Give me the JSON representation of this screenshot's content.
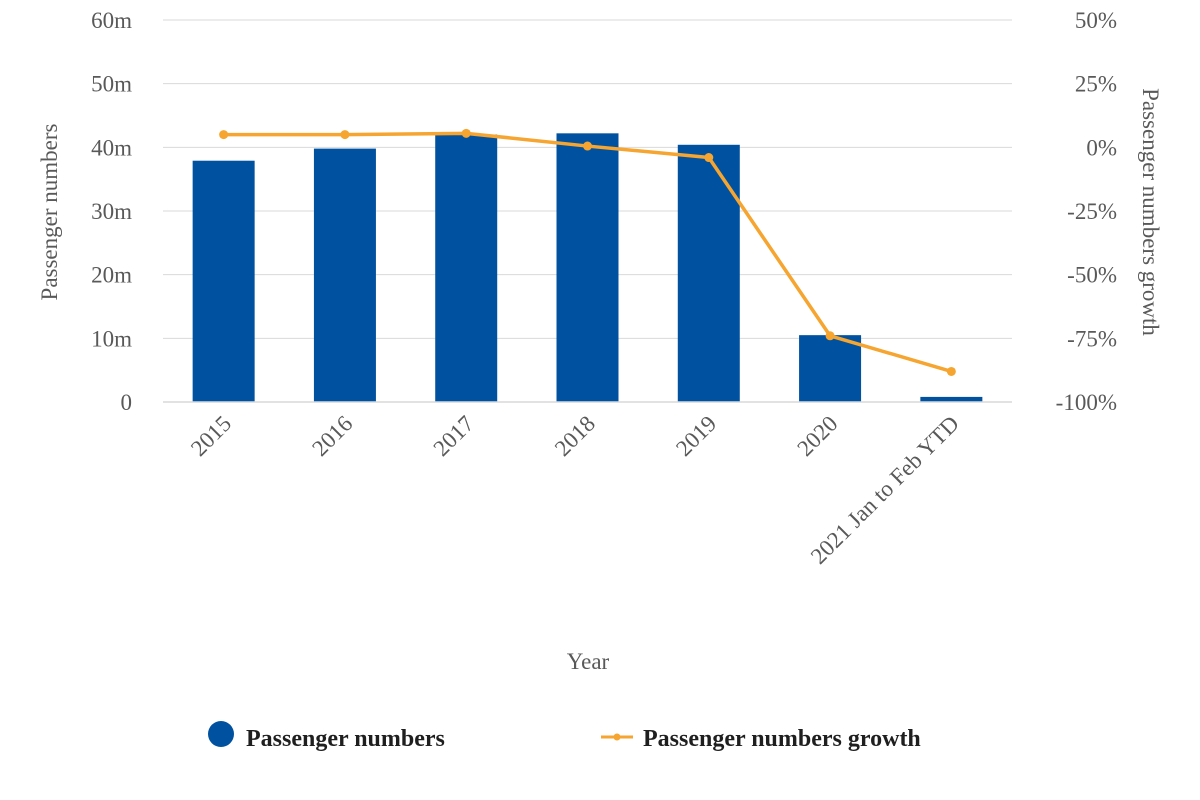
{
  "chart_data": {
    "type": "bar",
    "title": "",
    "xlabel": "Year",
    "ylabel": "Passenger numbers",
    "y2label": "Passenger numbers growth",
    "categories": [
      "2015",
      "2016",
      "2017",
      "2018",
      "2019",
      "2020",
      "2021 Jan to Feb YTD"
    ],
    "series": [
      {
        "name": "Passenger numbers",
        "type": "bar",
        "axis": "left",
        "color": "#0052A0",
        "unit": "millions",
        "values": [
          37.9,
          39.8,
          42.0,
          42.2,
          40.4,
          10.5,
          0.8
        ]
      },
      {
        "name": "Passenger numbers growth",
        "type": "line",
        "axis": "right",
        "color": "#F5A530",
        "unit": "percent",
        "values": [
          5,
          5,
          5.5,
          0.5,
          -4,
          -74,
          -88
        ]
      }
    ],
    "ylim": [
      0,
      60
    ],
    "yticks": [
      0,
      10,
      20,
      30,
      40,
      50,
      60
    ],
    "ytick_labels": [
      "0",
      "10m",
      "20m",
      "30m",
      "40m",
      "50m",
      "60m"
    ],
    "y2lim": [
      -100,
      50
    ],
    "y2ticks": [
      -100,
      -75,
      -50,
      -25,
      0,
      25,
      50
    ],
    "y2tick_labels": [
      "-100%",
      "-75%",
      "-50%",
      "-25%",
      "0%",
      "25%",
      "50%"
    ],
    "grid": true,
    "legend_position": "bottom"
  }
}
